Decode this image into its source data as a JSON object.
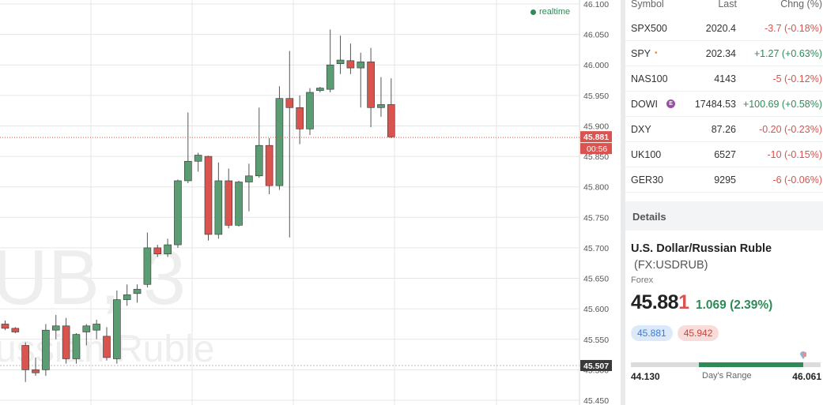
{
  "chart": {
    "realtime_label": "realtime",
    "watermark_line1": "UB, 3",
    "watermark_line2": "ussian Ruble",
    "current_price_label": "45.881",
    "countdown_label": "00:56",
    "reference_price_label": "45.507",
    "colors": {
      "up": "#5b9d73",
      "down": "#d9534f",
      "grid": "#e6e6e6"
    }
  },
  "chart_data": {
    "type": "candlestick",
    "y_ticks": [
      "46.100",
      "46.050",
      "46.000",
      "45.950",
      "45.900",
      "45.850",
      "45.800",
      "45.750",
      "45.700",
      "45.650",
      "45.600",
      "45.550",
      "45.500",
      "45.450"
    ],
    "ylim": [
      45.45,
      46.1
    ],
    "current_price": 45.881,
    "reference_line": 45.507,
    "candles": [
      {
        "o": 45.575,
        "h": 45.581,
        "l": 45.565,
        "c": 45.568
      },
      {
        "o": 45.568,
        "h": 45.57,
        "l": 45.56,
        "c": 45.562
      },
      {
        "o": 45.54,
        "h": 45.545,
        "l": 45.48,
        "c": 45.5
      },
      {
        "o": 45.5,
        "h": 45.52,
        "l": 45.49,
        "c": 45.495
      },
      {
        "o": 45.5,
        "h": 45.575,
        "l": 45.49,
        "c": 45.565
      },
      {
        "o": 45.565,
        "h": 45.59,
        "l": 45.55,
        "c": 45.572
      },
      {
        "o": 45.572,
        "h": 45.585,
        "l": 45.51,
        "c": 45.518
      },
      {
        "o": 45.518,
        "h": 45.56,
        "l": 45.51,
        "c": 45.558
      },
      {
        "o": 45.562,
        "h": 45.575,
        "l": 45.54,
        "c": 45.572
      },
      {
        "o": 45.565,
        "h": 45.582,
        "l": 45.55,
        "c": 45.575
      },
      {
        "o": 45.555,
        "h": 45.57,
        "l": 45.515,
        "c": 45.52
      },
      {
        "o": 45.518,
        "h": 45.63,
        "l": 45.51,
        "c": 45.615
      },
      {
        "o": 45.615,
        "h": 45.64,
        "l": 45.605,
        "c": 45.623
      },
      {
        "o": 45.625,
        "h": 45.64,
        "l": 45.61,
        "c": 45.632
      },
      {
        "o": 45.64,
        "h": 45.725,
        "l": 45.635,
        "c": 45.7
      },
      {
        "o": 45.7,
        "h": 45.705,
        "l": 45.685,
        "c": 45.69
      },
      {
        "o": 45.69,
        "h": 45.715,
        "l": 45.685,
        "c": 45.705
      },
      {
        "o": 45.705,
        "h": 45.812,
        "l": 45.7,
        "c": 45.81
      },
      {
        "o": 45.81,
        "h": 45.922,
        "l": 45.806,
        "c": 45.842
      },
      {
        "o": 45.842,
        "h": 45.856,
        "l": 45.825,
        "c": 45.852
      },
      {
        "o": 45.85,
        "h": 45.851,
        "l": 45.712,
        "c": 45.722
      },
      {
        "o": 45.722,
        "h": 45.84,
        "l": 45.715,
        "c": 45.81
      },
      {
        "o": 45.81,
        "h": 45.83,
        "l": 45.732,
        "c": 45.737
      },
      {
        "o": 45.737,
        "h": 45.81,
        "l": 45.735,
        "c": 45.808
      },
      {
        "o": 45.808,
        "h": 45.838,
        "l": 45.76,
        "c": 45.818
      },
      {
        "o": 45.818,
        "h": 45.93,
        "l": 45.815,
        "c": 45.868
      },
      {
        "o": 45.868,
        "h": 45.88,
        "l": 45.788,
        "c": 45.802
      },
      {
        "o": 45.802,
        "h": 45.965,
        "l": 45.795,
        "c": 45.945
      },
      {
        "o": 45.945,
        "h": 46.023,
        "l": 45.717,
        "c": 45.93
      },
      {
        "o": 45.93,
        "h": 45.95,
        "l": 45.87,
        "c": 45.895
      },
      {
        "o": 45.895,
        "h": 45.962,
        "l": 45.885,
        "c": 45.955
      },
      {
        "o": 45.958,
        "h": 45.964,
        "l": 45.955,
        "c": 45.962
      },
      {
        "o": 45.96,
        "h": 46.058,
        "l": 45.955,
        "c": 46.0
      },
      {
        "o": 46.002,
        "h": 46.048,
        "l": 45.985,
        "c": 46.008
      },
      {
        "o": 46.007,
        "h": 46.035,
        "l": 45.985,
        "c": 45.995
      },
      {
        "o": 45.995,
        "h": 46.02,
        "l": 45.93,
        "c": 46.005
      },
      {
        "o": 46.005,
        "h": 46.028,
        "l": 45.898,
        "c": 45.93
      },
      {
        "o": 45.93,
        "h": 45.98,
        "l": 45.915,
        "c": 45.935
      },
      {
        "o": 45.935,
        "h": 45.978,
        "l": 45.88,
        "c": 45.882
      }
    ]
  },
  "watchlist": {
    "headers": {
      "symbol": "Symbol",
      "last": "Last",
      "change": "Chng (%)"
    },
    "rows": [
      {
        "symbol": "SPX500",
        "last": "2020.4",
        "change": "-3.7 (-0.18%)",
        "direction": "down",
        "flag": ""
      },
      {
        "symbol": "SPY",
        "last": "202.34",
        "change": "+1.27 (+0.63%)",
        "direction": "up",
        "flag": "•"
      },
      {
        "symbol": "NAS100",
        "last": "4143",
        "change": "-5 (-0.12%)",
        "direction": "down",
        "flag": ""
      },
      {
        "symbol": "DOWI",
        "last": "17484.53",
        "change": "+100.69 (+0.58%)",
        "direction": "up",
        "flag": "E"
      },
      {
        "symbol": "DXY",
        "last": "87.26",
        "change": "-0.20 (-0.23%)",
        "direction": "down",
        "flag": ""
      },
      {
        "symbol": "UK100",
        "last": "6527",
        "change": "-10 (-0.15%)",
        "direction": "down",
        "flag": ""
      },
      {
        "symbol": "GER30",
        "last": "9295",
        "change": "-6 (-0.06%)",
        "direction": "down",
        "flag": ""
      }
    ]
  },
  "details": {
    "heading": "Details",
    "name": "U.S. Dollar/Russian Ruble",
    "code": "(FX:USDRUB)",
    "type": "Forex",
    "price_main": "45.88",
    "price_last_digit": "1",
    "change": "1.069 (2.39%)",
    "bid": "45.881",
    "ask": "45.942",
    "range_low": "44.130",
    "range_high": "46.061",
    "range_label": "Day's Range",
    "range_fill_start_fraction": 0.36,
    "range_fill_end_fraction": 0.91,
    "range_marker_fraction": 0.91
  }
}
